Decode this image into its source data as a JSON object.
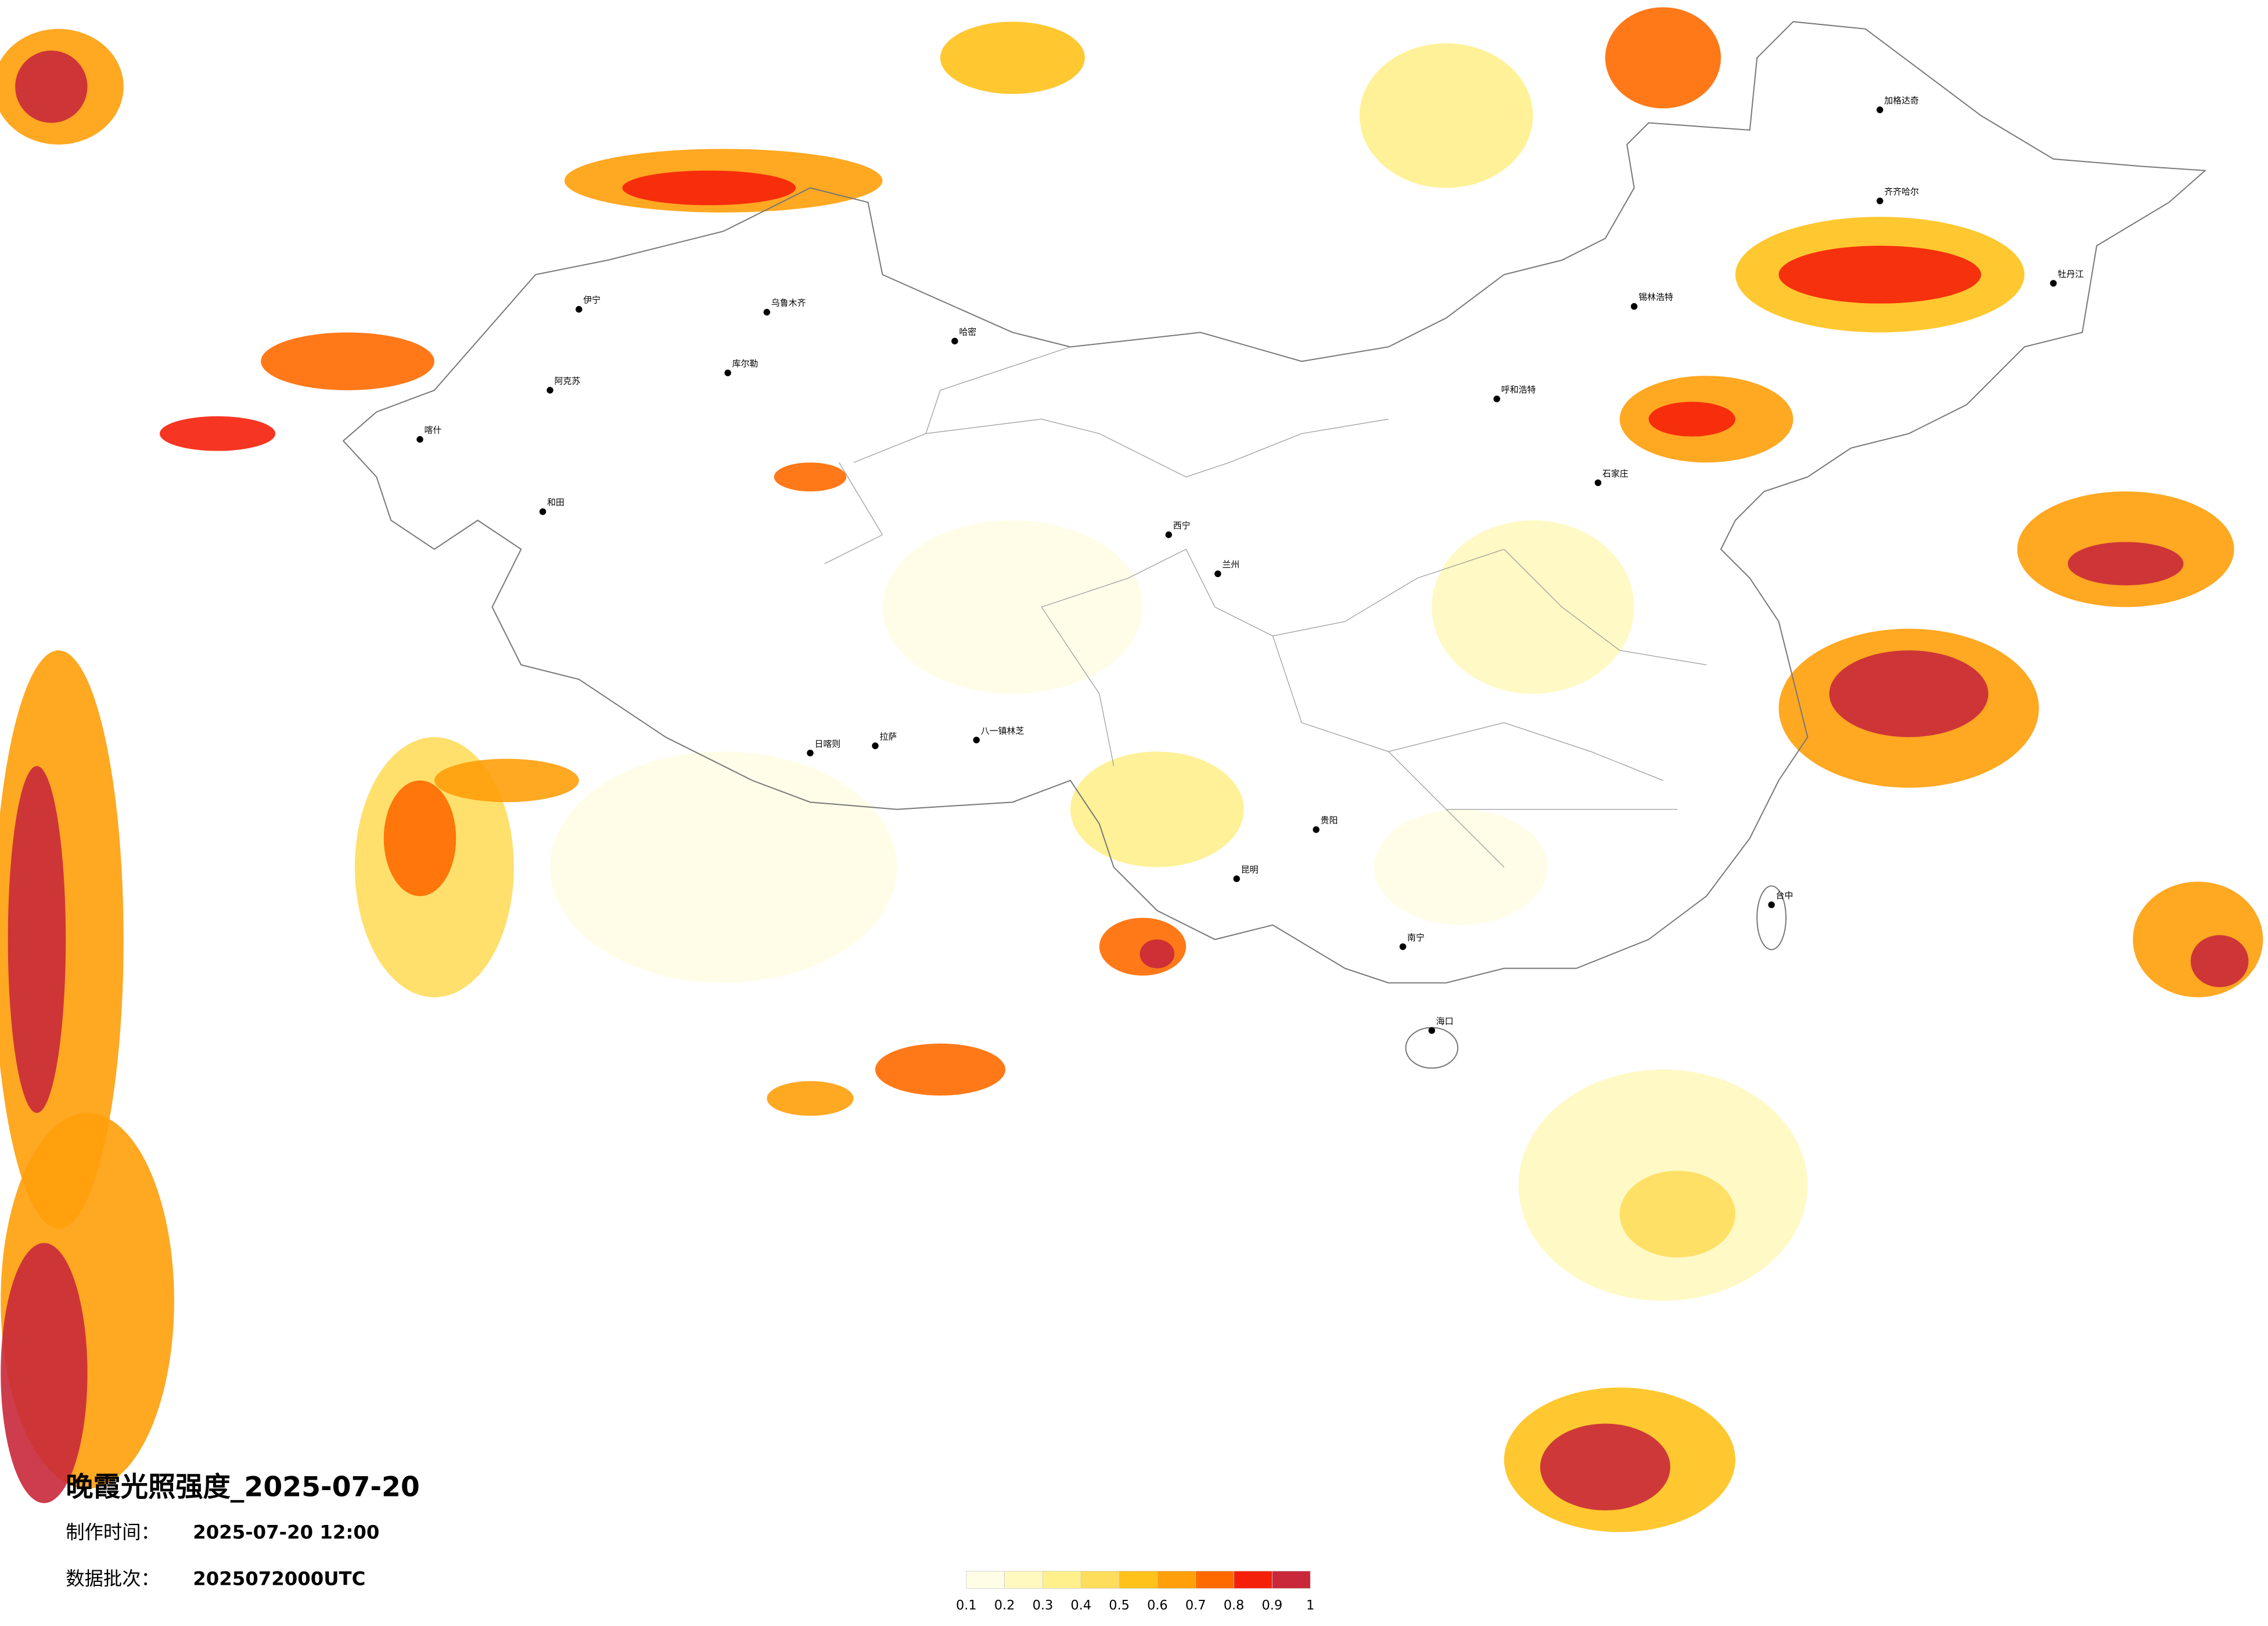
{
  "header": {
    "title": "晚霞光照强度_2025-07-20",
    "made_label": "制作时间：",
    "made_time": "2025-07-20 12:00",
    "batch_label": "数据批次：",
    "batch": "2025072000UTC"
  },
  "legend": {
    "colors": [
      "#fffde6",
      "#fff8bf",
      "#fff08c",
      "#ffdd5c",
      "#ffc21a",
      "#ff9f0a",
      "#ff6a00",
      "#f5200a",
      "#c9283a"
    ],
    "ticks": [
      0.1,
      0.2,
      0.3,
      0.4,
      0.5,
      0.6,
      0.7,
      0.8,
      0.9,
      1
    ]
  },
  "cities": [
    "伊宁",
    "乌鲁木齐",
    "阿克苏",
    "库尔勒",
    "哈密",
    "喀什",
    "和田",
    "日喀则",
    "拉萨",
    "八一镇林芝",
    "西宁",
    "兰州",
    "呼和浩特",
    "石家庄",
    "锡林浩特",
    "加格达奇",
    "齐齐哈尔",
    "牡丹江",
    "昆明",
    "贵阳",
    "南宁",
    "海口",
    "台中"
  ]
}
